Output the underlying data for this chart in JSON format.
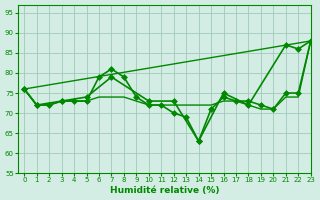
{
  "title": "",
  "xlabel": "Humidité relative (%)",
  "ylabel": "",
  "xlim": [
    -0.5,
    23
  ],
  "ylim": [
    55,
    97
  ],
  "yticks": [
    55,
    60,
    65,
    70,
    75,
    80,
    85,
    90,
    95
  ],
  "xticks": [
    0,
    1,
    2,
    3,
    4,
    5,
    6,
    7,
    8,
    9,
    10,
    11,
    12,
    13,
    14,
    15,
    16,
    17,
    18,
    19,
    20,
    21,
    22,
    23
  ],
  "background_color": "#d4ede4",
  "grid_color": "#a0c8b8",
  "line_color": "#008800",
  "series": [
    {
      "comment": "jagged line with diamond markers",
      "x": [
        0,
        1,
        2,
        3,
        4,
        5,
        6,
        7,
        8,
        9,
        10,
        11,
        12,
        13,
        14,
        15,
        16,
        17,
        18,
        19,
        20,
        21,
        22,
        23
      ],
      "y": [
        76,
        72,
        72,
        73,
        73,
        73,
        79,
        81,
        79,
        74,
        72,
        72,
        70,
        69,
        63,
        71,
        74,
        73,
        73,
        72,
        71,
        75,
        75,
        88
      ],
      "marker": "D",
      "markersize": 3,
      "linewidth": 1.2,
      "linestyle": "solid"
    },
    {
      "comment": "slightly smoothed version of jagged line, no markers",
      "x": [
        0,
        1,
        2,
        3,
        4,
        5,
        6,
        7,
        8,
        9,
        10,
        11,
        12,
        13,
        14,
        15,
        16,
        17,
        18,
        19,
        20,
        21,
        22,
        23
      ],
      "y": [
        76,
        72,
        72,
        73,
        73,
        73,
        74,
        74,
        74,
        73,
        72,
        72,
        72,
        72,
        72,
        72,
        73,
        73,
        72,
        71,
        71,
        74,
        74,
        88
      ],
      "marker": null,
      "markersize": 0,
      "linewidth": 1.0,
      "linestyle": "solid"
    },
    {
      "comment": "nearly straight diagonal line with markers - rising trend",
      "x": [
        0,
        1,
        3,
        5,
        7,
        10,
        12,
        14,
        16,
        18,
        21,
        22,
        23
      ],
      "y": [
        76,
        72,
        73,
        74,
        79,
        73,
        73,
        63,
        75,
        72,
        87,
        86,
        88
      ],
      "marker": "D",
      "markersize": 3,
      "linewidth": 1.2,
      "linestyle": "solid"
    },
    {
      "comment": "straight rising diagonal from 0,76 to 23,88",
      "x": [
        0,
        23
      ],
      "y": [
        76,
        88
      ],
      "marker": null,
      "markersize": 0,
      "linewidth": 1.0,
      "linestyle": "solid"
    }
  ]
}
